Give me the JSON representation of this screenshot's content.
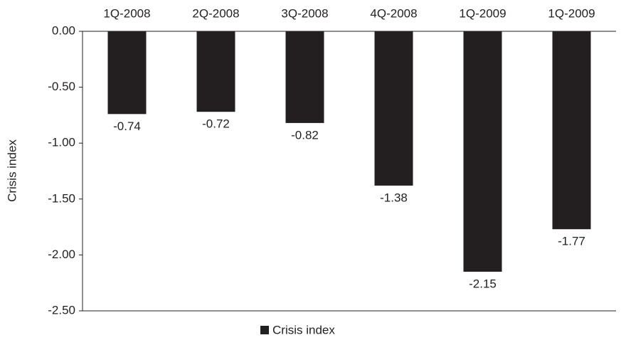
{
  "chart_data": {
    "type": "bar",
    "y_label": "Crisis index",
    "categories": [
      "1Q-2008",
      "2Q-2008",
      "3Q-2008",
      "4Q-2008",
      "1Q-2009",
      "1Q-2009"
    ],
    "series": [
      {
        "name": "Crisis index",
        "color": "#231f20",
        "values": [
          -0.74,
          -0.72,
          -0.82,
          -1.38,
          -2.15,
          -1.77
        ]
      }
    ],
    "ylim": [
      -2.5,
      0
    ],
    "yticks": [
      {
        "value": 0,
        "label": "0.00"
      },
      {
        "value": -0.5,
        "label": "-0.50"
      },
      {
        "value": -1,
        "label": "-1.00"
      },
      {
        "value": -1.5,
        "label": "-1.50"
      },
      {
        "value": -2,
        "label": "-2.00"
      },
      {
        "value": -2.5,
        "label": "-2.50"
      }
    ],
    "legend": "bottom"
  }
}
